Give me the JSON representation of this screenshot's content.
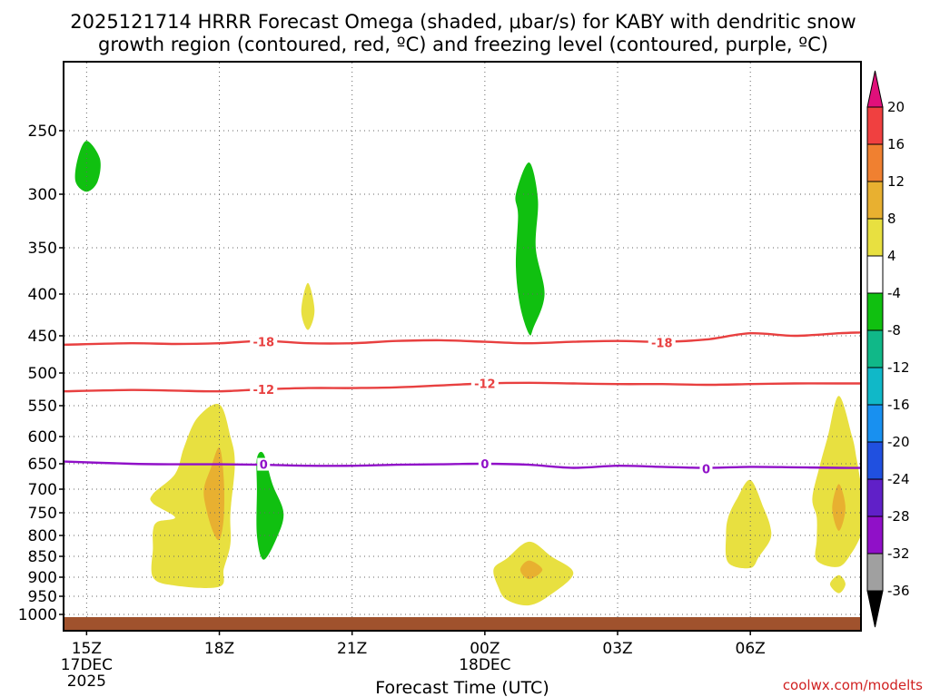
{
  "chart_data": {
    "type": "contour",
    "title_line1": "2025121714 HRRR Forecast Omega (shaded, μbar/s) for KABY with dendritic snow",
    "title_line2": "growth region (contoured, red, ºC) and freezing level (contoured, purple, ºC)",
    "xlabel": "Forecast Time (UTC)",
    "credit": "coolwx.com/modelts",
    "x_range_hours": [
      -0.5,
      17.5
    ],
    "x_ticks": [
      {
        "hour": 0,
        "label": "15Z",
        "sub1": "17DEC",
        "sub2": "2025"
      },
      {
        "hour": 3,
        "label": "18Z",
        "sub1": "",
        "sub2": ""
      },
      {
        "hour": 6,
        "label": "21Z",
        "sub1": "",
        "sub2": ""
      },
      {
        "hour": 9,
        "label": "00Z",
        "sub1": "18DEC",
        "sub2": ""
      },
      {
        "hour": 12,
        "label": "03Z",
        "sub1": "",
        "sub2": ""
      },
      {
        "hour": 15,
        "label": "06Z",
        "sub1": "",
        "sub2": ""
      }
    ],
    "y_ticks": [
      "250",
      "300",
      "350",
      "400",
      "450",
      "500",
      "550",
      "600",
      "650",
      "700",
      "750",
      "800",
      "850",
      "900",
      "950",
      "1000"
    ],
    "y_unit": "hPa",
    "colorbar": {
      "labels": [
        "20",
        "16",
        "12",
        "8",
        "4",
        "-4",
        "-8",
        "-12",
        "-16",
        "-20",
        "-24",
        "-28",
        "-32",
        "-36"
      ],
      "colors": [
        "#e0107a",
        "#f04040",
        "#f08030",
        "#e8b030",
        "#e8e040",
        "#ffffff",
        "#10c010",
        "#10b888",
        "#10b8c8",
        "#1890f0",
        "#2050e0",
        "#6020c8",
        "#9010c8",
        "#a0a0a0",
        "#000000"
      ]
    },
    "contours": [
      {
        "name": "dgz-upper",
        "value": -18,
        "label": "-18",
        "color": "#e84040",
        "points": [
          [
            -0.5,
            462
          ],
          [
            1,
            460
          ],
          [
            2,
            461
          ],
          [
            3,
            460
          ],
          [
            4,
            457
          ],
          [
            5,
            460
          ],
          [
            6,
            460
          ],
          [
            7,
            457
          ],
          [
            8,
            456
          ],
          [
            9,
            458
          ],
          [
            10,
            460
          ],
          [
            11,
            458
          ],
          [
            12,
            457
          ],
          [
            13,
            458
          ],
          [
            14,
            455
          ],
          [
            15,
            447
          ],
          [
            16,
            450
          ],
          [
            17,
            447
          ],
          [
            17.5,
            446
          ]
        ],
        "label_positions": [
          [
            4,
            458
          ],
          [
            13,
            459
          ]
        ]
      },
      {
        "name": "dgz-lower",
        "value": -12,
        "label": "-12",
        "color": "#e84040",
        "points": [
          [
            -0.5,
            528
          ],
          [
            1,
            526
          ],
          [
            2,
            527
          ],
          [
            3,
            528
          ],
          [
            4,
            525
          ],
          [
            5,
            523
          ],
          [
            6,
            523
          ],
          [
            7,
            522
          ],
          [
            8,
            519
          ],
          [
            9,
            516
          ],
          [
            10,
            515
          ],
          [
            11,
            516
          ],
          [
            12,
            517
          ],
          [
            13,
            517
          ],
          [
            14,
            518
          ],
          [
            15,
            517
          ],
          [
            16,
            516
          ],
          [
            17,
            516
          ],
          [
            17.5,
            516
          ]
        ],
        "label_positions": [
          [
            4,
            525
          ],
          [
            9,
            516
          ]
        ]
      },
      {
        "name": "freezing-level",
        "value": 0,
        "label": "0",
        "color": "#9010c8",
        "points": [
          [
            -0.5,
            646
          ],
          [
            1,
            650
          ],
          [
            2,
            651
          ],
          [
            3,
            651
          ],
          [
            4,
            652
          ],
          [
            5,
            654
          ],
          [
            6,
            654
          ],
          [
            7,
            652
          ],
          [
            8,
            651
          ],
          [
            9,
            650
          ],
          [
            10,
            652
          ],
          [
            11,
            658
          ],
          [
            12,
            654
          ],
          [
            13,
            656
          ],
          [
            14,
            658
          ],
          [
            15,
            656
          ],
          [
            16,
            657
          ],
          [
            17,
            658
          ],
          [
            17.5,
            658
          ]
        ],
        "label_positions": [
          [
            4,
            651
          ],
          [
            9,
            650
          ],
          [
            14,
            660
          ]
        ]
      }
    ],
    "regions": [
      {
        "name": "omega-green-1",
        "level": "-8 to -4",
        "color": "#10c010",
        "points": [
          [
            0,
            258
          ],
          [
            0.3,
            272
          ],
          [
            0.25,
            290
          ],
          [
            0,
            298
          ],
          [
            -0.25,
            290
          ],
          [
            -0.2,
            272
          ]
        ]
      },
      {
        "name": "omega-green-2",
        "level": "-8 to -4",
        "color": "#10c010",
        "points": [
          [
            10,
            275
          ],
          [
            10.2,
            305
          ],
          [
            10.15,
            350
          ],
          [
            10.35,
            400
          ],
          [
            10.1,
            440
          ],
          [
            10,
            448
          ],
          [
            9.8,
            415
          ],
          [
            9.7,
            370
          ],
          [
            9.75,
            320
          ],
          [
            9.7,
            300
          ]
        ]
      },
      {
        "name": "omega-green-3",
        "level": "-8 to -4",
        "color": "#10c010",
        "points": [
          [
            4,
            632
          ],
          [
            4.2,
            690
          ],
          [
            4.45,
            750
          ],
          [
            4.3,
            805
          ],
          [
            4,
            858
          ],
          [
            3.85,
            800
          ],
          [
            3.85,
            700
          ],
          [
            3.85,
            640
          ]
        ]
      },
      {
        "name": "omega-yellow-1",
        "level": "4 to 8",
        "color": "#e8e040",
        "points": [
          [
            5,
            388
          ],
          [
            5.15,
            420
          ],
          [
            5,
            443
          ],
          [
            4.85,
            420
          ]
        ]
      },
      {
        "name": "omega-yellow-2",
        "level": "4 to 8",
        "color": "#e8e040",
        "points": [
          [
            3,
            548
          ],
          [
            3.25,
            600
          ],
          [
            3.35,
            650
          ],
          [
            3.25,
            750
          ],
          [
            3.25,
            820
          ],
          [
            3.1,
            880
          ],
          [
            3,
            925
          ],
          [
            2,
            922
          ],
          [
            1.5,
            900
          ],
          [
            1.5,
            830
          ],
          [
            1.5,
            790
          ],
          [
            1.6,
            770
          ],
          [
            2,
            760
          ],
          [
            1.5,
            730
          ],
          [
            1.5,
            710
          ],
          [
            2,
            670
          ],
          [
            2.2,
            620
          ],
          [
            2.5,
            570
          ]
        ]
      },
      {
        "name": "omega-orange-1",
        "level": "8 to 12",
        "color": "#e8b030",
        "points": [
          [
            3,
            620
          ],
          [
            3.1,
            680
          ],
          [
            3.1,
            760
          ],
          [
            3,
            810
          ],
          [
            2.85,
            790
          ],
          [
            2.7,
            740
          ],
          [
            2.65,
            700
          ],
          [
            2.8,
            660
          ]
        ]
      },
      {
        "name": "omega-yellow-3",
        "level": "4 to 8",
        "color": "#e8e040",
        "points": [
          [
            10,
            815
          ],
          [
            10.5,
            850
          ],
          [
            11,
            890
          ],
          [
            10.5,
            945
          ],
          [
            10,
            975
          ],
          [
            9.5,
            960
          ],
          [
            9.3,
            925
          ],
          [
            9.2,
            880
          ],
          [
            9.5,
            855
          ]
        ]
      },
      {
        "name": "omega-orange-2",
        "level": "8 to 12",
        "color": "#e8b030",
        "points": [
          [
            10,
            860
          ],
          [
            10.3,
            882
          ],
          [
            10,
            905
          ],
          [
            9.8,
            882
          ]
        ]
      },
      {
        "name": "omega-yellow-4",
        "level": "4 to 8",
        "color": "#e8e040",
        "points": [
          [
            15,
            682
          ],
          [
            15.3,
            740
          ],
          [
            15.45,
            780
          ],
          [
            15.45,
            810
          ],
          [
            15.2,
            850
          ],
          [
            15,
            878
          ],
          [
            14.5,
            865
          ],
          [
            14.45,
            800
          ],
          [
            14.5,
            760
          ],
          [
            14.7,
            720
          ]
        ]
      },
      {
        "name": "omega-yellow-5",
        "level": "4 to 8",
        "color": "#e8e040",
        "points": [
          [
            17,
            535
          ],
          [
            17.3,
            600
          ],
          [
            17.4,
            640
          ],
          [
            17.5,
            690
          ],
          [
            17.65,
            760
          ],
          [
            17.5,
            800
          ],
          [
            17.3,
            840
          ],
          [
            17,
            875
          ],
          [
            16.5,
            860
          ],
          [
            16.5,
            810
          ],
          [
            16.5,
            760
          ],
          [
            16.4,
            720
          ],
          [
            16.55,
            660
          ],
          [
            16.75,
            600
          ]
        ]
      },
      {
        "name": "omega-orange-3",
        "level": "8 to 12",
        "color": "#e8b030",
        "points": [
          [
            17,
            690
          ],
          [
            17.15,
            740
          ],
          [
            17,
            790
          ],
          [
            16.85,
            740
          ]
        ]
      },
      {
        "name": "omega-yellow-6",
        "level": "4 to 8",
        "color": "#e8e040",
        "points": [
          [
            17,
            895
          ],
          [
            17.15,
            918
          ],
          [
            17,
            942
          ],
          [
            16.8,
            918
          ]
        ]
      }
    ]
  }
}
